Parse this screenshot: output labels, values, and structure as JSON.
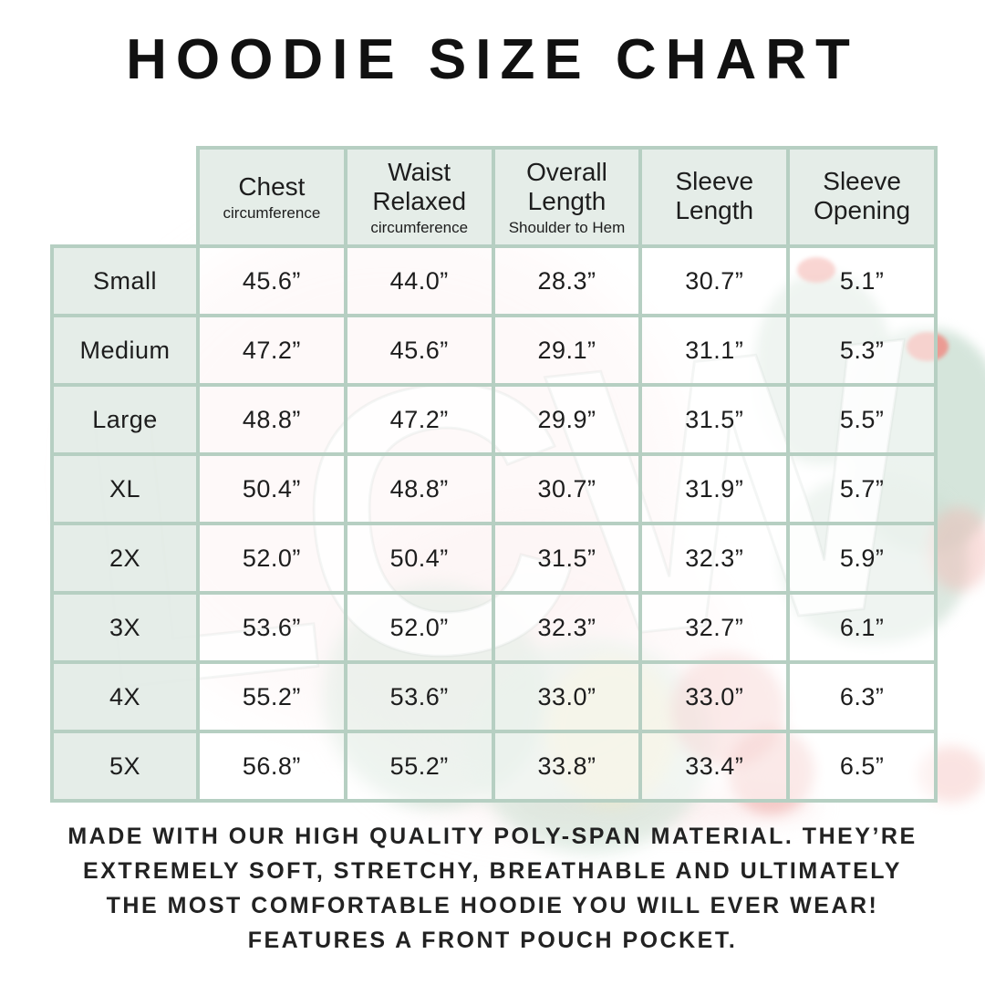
{
  "title": "HOODIE SIZE CHART",
  "watermark": {
    "text": "LCW"
  },
  "table": {
    "headers": [
      {
        "title": "Chest",
        "subtitle": "circumference"
      },
      {
        "title": "Waist Relaxed",
        "subtitle": "circumference"
      },
      {
        "title": "Overall Length",
        "subtitle": "Shoulder to Hem"
      },
      {
        "title": "Sleeve Length",
        "subtitle": ""
      },
      {
        "title": "Sleeve Opening",
        "subtitle": ""
      }
    ],
    "rows": [
      {
        "label": "Small",
        "values": [
          "45.6”",
          "44.0”",
          "28.3”",
          "30.7”",
          "5.1”"
        ]
      },
      {
        "label": "Medium",
        "values": [
          "47.2”",
          "45.6”",
          "29.1”",
          "31.1”",
          "5.3”"
        ]
      },
      {
        "label": "Large",
        "values": [
          "48.8”",
          "47.2”",
          "29.9”",
          "31.5”",
          "5.5”"
        ]
      },
      {
        "label": "XL",
        "values": [
          "50.4”",
          "48.8”",
          "30.7”",
          "31.9”",
          "5.7”"
        ]
      },
      {
        "label": "2X",
        "values": [
          "52.0”",
          "50.4”",
          "31.5”",
          "32.3”",
          "5.9”"
        ]
      },
      {
        "label": "3X",
        "values": [
          "53.6”",
          "52.0”",
          "32.3”",
          "32.7”",
          "6.1”"
        ]
      },
      {
        "label": "4X",
        "values": [
          "55.2”",
          "53.6”",
          "33.0”",
          "33.0”",
          "6.3”"
        ]
      },
      {
        "label": "5X",
        "values": [
          "56.8”",
          "55.2”",
          "33.8”",
          "33.4”",
          "6.5”"
        ]
      }
    ]
  },
  "footer": {
    "lines": [
      "MADE WITH OUR HIGH QUALITY POLY-SPAN MATERIAL. THEY’RE",
      "EXTREMELY SOFT, STRETCHY, BREATHABLE AND ULTIMATELY",
      "THE MOST COMFORTABLE HOODIE YOU WILL EVER WEAR!",
      "FEATURES A FRONT POUCH POCKET."
    ]
  },
  "colors": {
    "table_border": "#b6cfc2",
    "header_cell_bg": "#e3ece7",
    "text": "#1d1d1d",
    "watermark_pink": "#f8d7d7",
    "watermark_green": "#cfe0d5",
    "flower_coral": "#ef8f87"
  },
  "chart_data": {
    "type": "table",
    "title": "HOODIE SIZE CHART",
    "columns": [
      "",
      "Chest circumference",
      "Waist Relaxed circumference",
      "Overall Length Shoulder to Hem",
      "Sleeve Length",
      "Sleeve Opening"
    ],
    "rows": [
      [
        "Small",
        45.6,
        44.0,
        28.3,
        30.7,
        5.1
      ],
      [
        "Medium",
        47.2,
        45.6,
        29.1,
        31.1,
        5.3
      ],
      [
        "Large",
        48.8,
        47.2,
        29.9,
        31.5,
        5.5
      ],
      [
        "XL",
        50.4,
        48.8,
        30.7,
        31.9,
        5.7
      ],
      [
        "2X",
        52.0,
        50.4,
        31.5,
        32.3,
        5.9
      ],
      [
        "3X",
        53.6,
        52.0,
        32.3,
        32.7,
        6.1
      ],
      [
        "4X",
        55.2,
        53.6,
        33.0,
        33.0,
        6.3
      ],
      [
        "5X",
        56.8,
        55.2,
        33.8,
        33.4,
        6.5
      ]
    ],
    "units": "inches",
    "notes": "MADE WITH OUR HIGH QUALITY POLY-SPAN MATERIAL. THEY’RE EXTREMELY SOFT, STRETCHY, BREATHABLE AND ULTIMATELY THE MOST COMFORTABLE HOODIE YOU WILL EVER WEAR! FEATURES A FRONT POUCH POCKET."
  }
}
